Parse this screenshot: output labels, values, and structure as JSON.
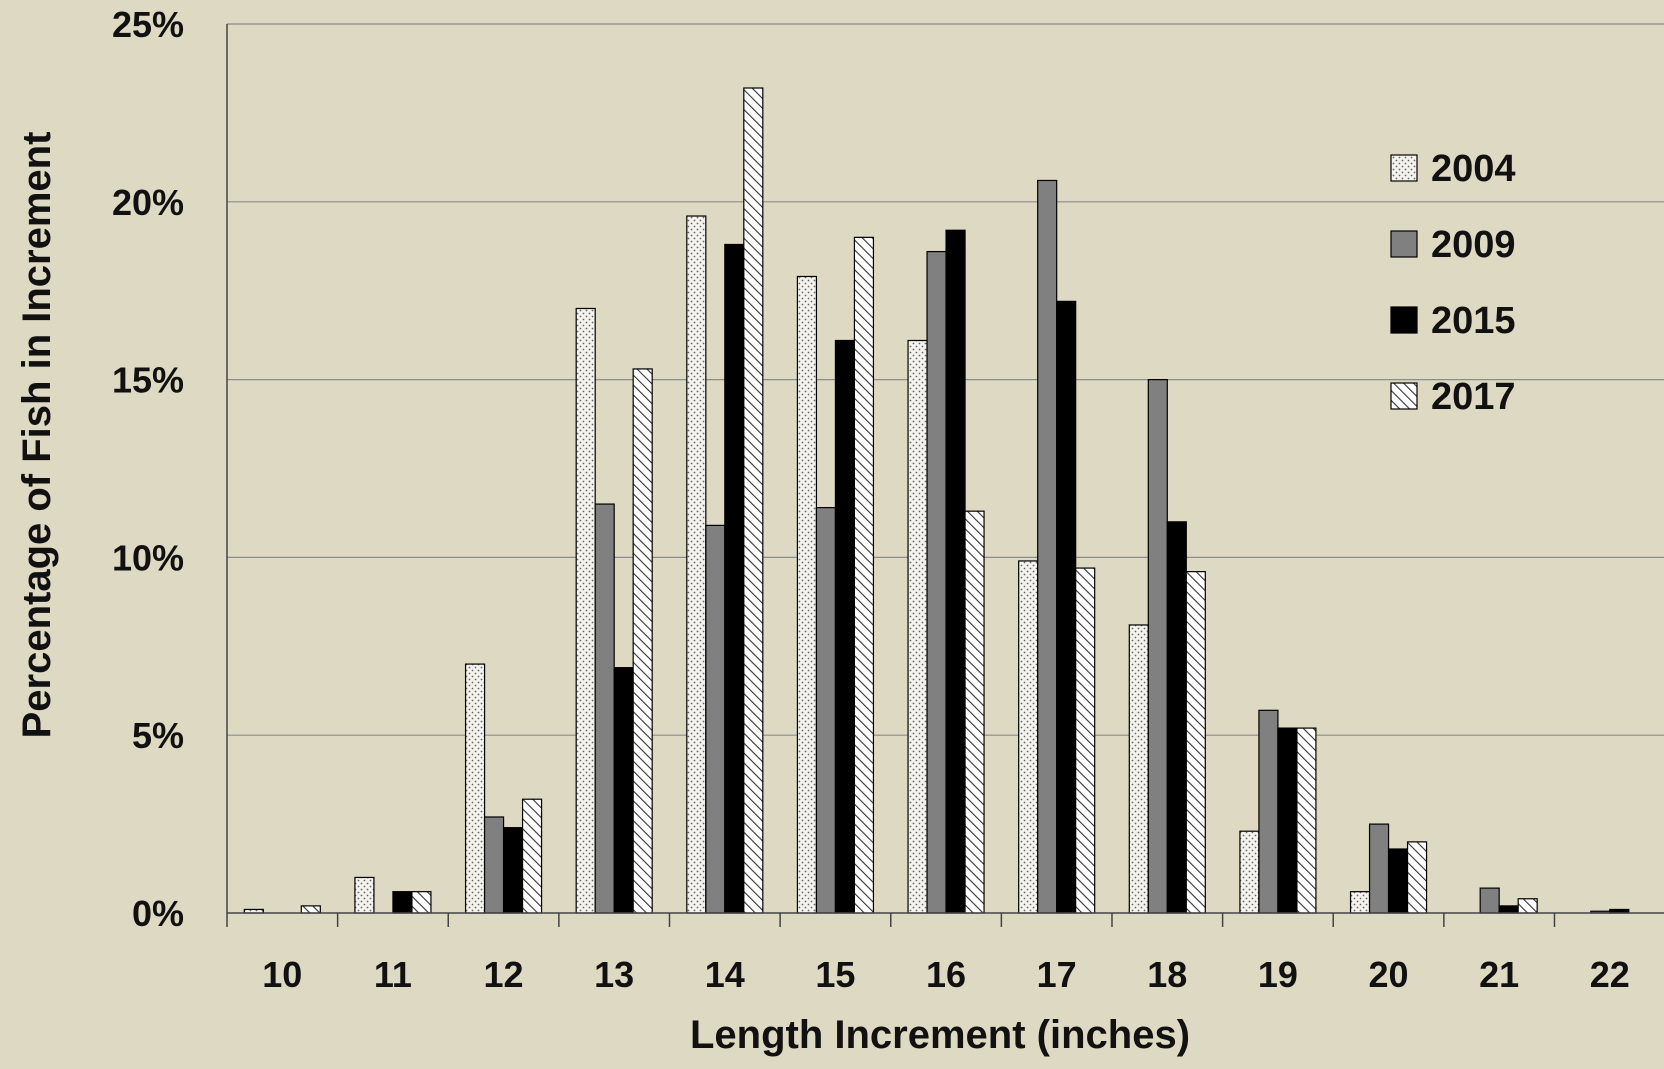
{
  "chart_data": {
    "type": "bar",
    "title": "",
    "xlabel": "Length Increment (inches)",
    "ylabel": "Percentage of Fish in Increment",
    "categories": [
      "10",
      "11",
      "12",
      "13",
      "14",
      "15",
      "16",
      "17",
      "18",
      "19",
      "20",
      "21",
      "22"
    ],
    "ylim": [
      0,
      25
    ],
    "yticks": [
      0,
      5,
      10,
      15,
      20,
      25
    ],
    "ytick_labels": [
      "0%",
      "5%",
      "10%",
      "15%",
      "20%",
      "25%"
    ],
    "grid": true,
    "legend_position": "top-right",
    "series": [
      {
        "name": "2004",
        "pattern": "dots",
        "values": [
          0.1,
          1.0,
          7.0,
          17.0,
          19.6,
          17.9,
          16.1,
          9.9,
          8.1,
          2.3,
          0.6,
          0.0,
          0.0
        ]
      },
      {
        "name": "2009",
        "pattern": "solid-gray",
        "values": [
          0.0,
          0.0,
          2.7,
          11.5,
          10.9,
          11.4,
          18.6,
          20.6,
          15.0,
          5.7,
          2.5,
          0.7,
          0.05
        ]
      },
      {
        "name": "2015",
        "pattern": "solid-black",
        "values": [
          0.0,
          0.6,
          2.4,
          6.9,
          18.8,
          16.1,
          19.2,
          17.2,
          11.0,
          5.2,
          1.8,
          0.2,
          0.1
        ]
      },
      {
        "name": "2017",
        "pattern": "hatch",
        "values": [
          0.2,
          0.6,
          3.2,
          15.3,
          23.2,
          19.0,
          11.3,
          9.7,
          9.6,
          5.2,
          2.0,
          0.4,
          0.0
        ]
      }
    ]
  }
}
